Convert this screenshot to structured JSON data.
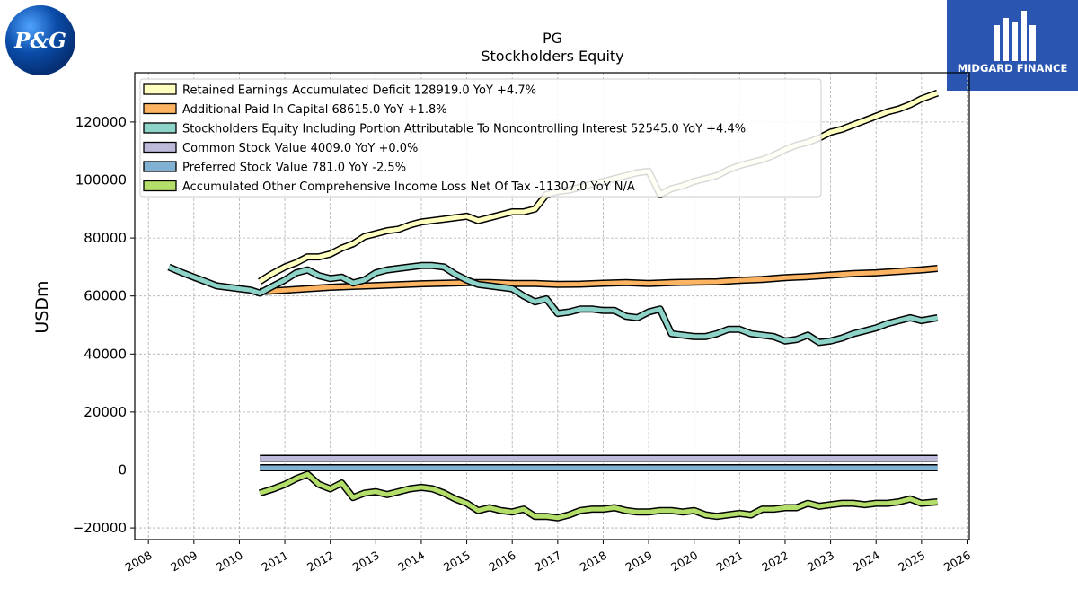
{
  "logos": {
    "left": {
      "text": "P&G",
      "color": "#0a4ca8"
    },
    "right": {
      "text": "MIDGARD FINANCE",
      "color": "#2a55b0"
    }
  },
  "chart_data": {
    "type": "line",
    "title": "PG",
    "subtitle": "Stockholders  Equity",
    "ylabel": "USDm",
    "xlabel": "",
    "xlim": [
      2007.7,
      2026.05
    ],
    "ylim": [
      -24000,
      137000
    ],
    "yticks": [
      -20000,
      0,
      20000,
      40000,
      60000,
      80000,
      100000,
      120000
    ],
    "ytick_labels": [
      "−20000",
      "0",
      "20000",
      "40000",
      "60000",
      "80000",
      "100000",
      "120000"
    ],
    "xticks": [
      2008,
      2009,
      2010,
      2011,
      2012,
      2013,
      2014,
      2015,
      2016,
      2017,
      2018,
      2019,
      2020,
      2021,
      2022,
      2023,
      2024,
      2025,
      2026
    ],
    "xtick_labels": [
      "2008",
      "2009",
      "2010",
      "2011",
      "2012",
      "2013",
      "2014",
      "2015",
      "2016",
      "2017",
      "2018",
      "2019",
      "2020",
      "2021",
      "2022",
      "2023",
      "2024",
      "2025",
      "2026"
    ],
    "grid": true,
    "legend_position": "top-left",
    "series": [
      {
        "name": "Retained Earnings Accumulated Deficit",
        "legend": "Retained Earnings Accumulated Deficit  128919.0 YoY +4.7%",
        "color": "#ffffc0",
        "x": [
          2010.45,
          2010.7,
          2011.0,
          2011.25,
          2011.5,
          2011.75,
          2012.0,
          2012.25,
          2012.5,
          2012.75,
          2013.0,
          2013.25,
          2013.5,
          2013.75,
          2014.0,
          2014.25,
          2014.5,
          2014.75,
          2015.0,
          2015.25,
          2015.5,
          2015.75,
          2016.0,
          2016.25,
          2016.5,
          2016.75,
          2017.0,
          2017.25,
          2017.5,
          2017.75,
          2018.0,
          2018.25,
          2018.5,
          2018.75,
          2019.0,
          2019.25,
          2019.5,
          2019.75,
          2020.0,
          2020.25,
          2020.5,
          2020.75,
          2021.0,
          2021.25,
          2021.5,
          2021.75,
          2022.0,
          2022.25,
          2022.5,
          2022.75,
          2023.0,
          2023.25,
          2023.5,
          2023.75,
          2024.0,
          2024.25,
          2024.5,
          2024.75,
          2025.0,
          2025.35
        ],
        "y": [
          65000,
          67500,
          70000,
          71500,
          73500,
          73500,
          74500,
          76500,
          78000,
          80500,
          81500,
          82500,
          83000,
          84500,
          85500,
          86000,
          86500,
          87000,
          87500,
          86000,
          87000,
          88000,
          89000,
          89000,
          90000,
          95000,
          96000,
          96500,
          97500,
          98500,
          99500,
          100500,
          101500,
          102500,
          103000,
          95000,
          97000,
          98000,
          99500,
          100500,
          101500,
          103500,
          105000,
          106000,
          107000,
          108500,
          110500,
          112000,
          113000,
          114500,
          116500,
          117500,
          119000,
          120500,
          122000,
          123500,
          124500,
          126000,
          128000,
          130000
        ]
      },
      {
        "name": "Additional Paid In Capital",
        "legend": "Additional Paid In Capital  68615.0 YoY +1.8%",
        "color": "#fdb462",
        "x": [
          2010.45,
          2011.0,
          2011.5,
          2012.0,
          2012.5,
          2013.0,
          2013.5,
          2014.0,
          2014.5,
          2015.0,
          2015.5,
          2016.0,
          2016.5,
          2017.0,
          2017.5,
          2018.0,
          2018.5,
          2019.0,
          2019.5,
          2020.0,
          2020.5,
          2021.0,
          2021.5,
          2022.0,
          2022.5,
          2023.0,
          2023.5,
          2024.0,
          2024.5,
          2025.0,
          2025.35
        ],
        "y": [
          61500,
          62000,
          62500,
          63000,
          63300,
          63600,
          63900,
          64200,
          64400,
          64600,
          64600,
          64300,
          64300,
          64000,
          64100,
          64400,
          64600,
          64300,
          64600,
          64800,
          64900,
          65400,
          65700,
          66300,
          66700,
          67200,
          67700,
          68000,
          68500,
          69000,
          69500
        ]
      },
      {
        "name": "Stockholders Equity Including Portion Attributable To Noncontrolling Interest",
        "legend": "Stockholders Equity Including Portion Attributable To Noncontrolling Interest  52545.0 YoY +4.4%",
        "color": "#8dd3c7",
        "x": [
          2008.45,
          2008.75,
          2009.0,
          2009.25,
          2009.5,
          2009.75,
          2010.0,
          2010.25,
          2010.45,
          2010.75,
          2011.0,
          2011.25,
          2011.5,
          2011.75,
          2012.0,
          2012.25,
          2012.5,
          2012.75,
          2013.0,
          2013.25,
          2013.5,
          2013.75,
          2014.0,
          2014.25,
          2014.5,
          2014.75,
          2015.0,
          2015.25,
          2015.5,
          2015.75,
          2016.0,
          2016.25,
          2016.5,
          2016.75,
          2017.0,
          2017.25,
          2017.5,
          2017.75,
          2018.0,
          2018.25,
          2018.5,
          2018.75,
          2019.0,
          2019.25,
          2019.5,
          2019.75,
          2020.0,
          2020.25,
          2020.5,
          2020.75,
          2021.0,
          2021.25,
          2021.5,
          2021.75,
          2022.0,
          2022.25,
          2022.5,
          2022.75,
          2023.0,
          2023.25,
          2023.5,
          2023.75,
          2024.0,
          2024.25,
          2024.5,
          2024.75,
          2025.0,
          2025.35
        ],
        "y": [
          70000,
          68000,
          66500,
          65000,
          63500,
          63000,
          62500,
          62000,
          61000,
          63500,
          65500,
          68000,
          69000,
          67000,
          66000,
          66500,
          64500,
          65500,
          68000,
          69000,
          69500,
          70000,
          70500,
          70500,
          70000,
          67500,
          65500,
          64000,
          63500,
          63000,
          62500,
          60000,
          58000,
          59000,
          54000,
          54500,
          55500,
          55500,
          55000,
          55000,
          53000,
          52500,
          54500,
          55500,
          47000,
          46500,
          46000,
          46000,
          47000,
          48500,
          48500,
          47000,
          46500,
          46000,
          44500,
          45000,
          46500,
          44000,
          44500,
          45500,
          47000,
          48000,
          49000,
          50500,
          51500,
          52500,
          51500,
          52500
        ]
      },
      {
        "name": "Common Stock Value",
        "legend": "Common Stock Value  4009.0 YoY +0.0%",
        "color": "#bebada",
        "x": [
          2010.45,
          2025.35
        ],
        "y": [
          4009,
          4009
        ]
      },
      {
        "name": "Preferred Stock Value",
        "legend": "Preferred Stock Value  781.0 YoY -2.5%",
        "color": "#80b1d3",
        "x": [
          2010.45,
          2025.35
        ],
        "y": [
          781,
          781
        ]
      },
      {
        "name": "Accumulated Other Comprehensive Income Loss Net Of Tax",
        "legend": "Accumulated Other Comprehensive Income Loss Net Of Tax  -11307.0 YoY N/A",
        "color": "#b3de69",
        "x": [
          2010.45,
          2010.75,
          2011.0,
          2011.25,
          2011.5,
          2011.75,
          2012.0,
          2012.25,
          2012.5,
          2012.75,
          2013.0,
          2013.25,
          2013.5,
          2013.75,
          2014.0,
          2014.25,
          2014.5,
          2014.75,
          2015.0,
          2015.25,
          2015.5,
          2015.75,
          2016.0,
          2016.25,
          2016.5,
          2016.75,
          2017.0,
          2017.25,
          2017.5,
          2017.75,
          2018.0,
          2018.25,
          2018.5,
          2018.75,
          2019.0,
          2019.25,
          2019.5,
          2019.75,
          2020.0,
          2020.25,
          2020.5,
          2020.75,
          2021.0,
          2021.25,
          2021.5,
          2021.75,
          2022.0,
          2022.25,
          2022.5,
          2022.75,
          2023.0,
          2023.25,
          2023.5,
          2023.75,
          2024.0,
          2024.25,
          2024.5,
          2024.75,
          2025.0,
          2025.35
        ],
        "y": [
          -8000,
          -6500,
          -5000,
          -3000,
          -1500,
          -5000,
          -6500,
          -4500,
          -9500,
          -8000,
          -7500,
          -8500,
          -7500,
          -6500,
          -6000,
          -6500,
          -8000,
          -10000,
          -11500,
          -14000,
          -13000,
          -14000,
          -14500,
          -13500,
          -16000,
          -16000,
          -16500,
          -15500,
          -14000,
          -13500,
          -13500,
          -13000,
          -14000,
          -14500,
          -14500,
          -14000,
          -14000,
          -14500,
          -14000,
          -15500,
          -16000,
          -15500,
          -15000,
          -15500,
          -13500,
          -13500,
          -13000,
          -13000,
          -11500,
          -12500,
          -12000,
          -11500,
          -11500,
          -12000,
          -11500,
          -11500,
          -11000,
          -10000,
          -11500,
          -11000
        ]
      }
    ]
  }
}
